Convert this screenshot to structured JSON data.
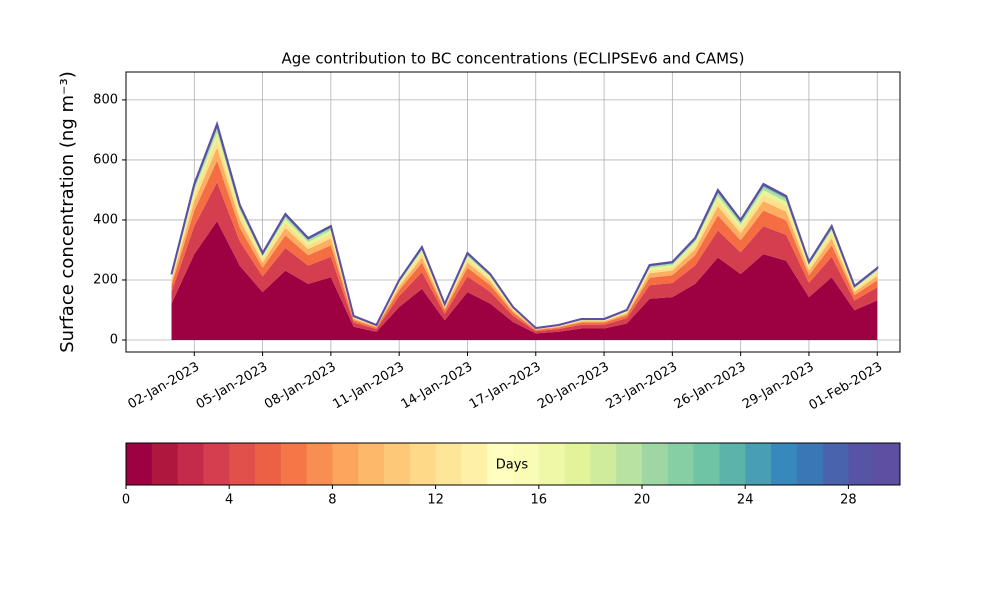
{
  "chart_data": {
    "type": "stacked-area",
    "title": "Age contribution to BC concentrations (ECLIPSEv6 and CAMS)",
    "y_label": "Surface concentration (ng m⁻³)",
    "x": [
      "01-Jan-2023",
      "02-Jan-2023",
      "03-Jan-2023",
      "04-Jan-2023",
      "05-Jan-2023",
      "06-Jan-2023",
      "07-Jan-2023",
      "08-Jan-2023",
      "09-Jan-2023",
      "10-Jan-2023",
      "11-Jan-2023",
      "12-Jan-2023",
      "13-Jan-2023",
      "14-Jan-2023",
      "15-Jan-2023",
      "16-Jan-2023",
      "17-Jan-2023",
      "18-Jan-2023",
      "19-Jan-2023",
      "20-Jan-2023",
      "21-Jan-2023",
      "22-Jan-2023",
      "23-Jan-2023",
      "24-Jan-2023",
      "25-Jan-2023",
      "26-Jan-2023",
      "27-Jan-2023",
      "28-Jan-2023",
      "29-Jan-2023",
      "30-Jan-2023",
      "31-Jan-2023",
      "01-Feb-2023"
    ],
    "series": [
      {
        "color": "#9e0142",
        "values": [
          121,
          286,
          396,
          247.5,
          159.5,
          231,
          187,
          209,
          44,
          27.5,
          110,
          170.5,
          66,
          159.5,
          121,
          60.5,
          22,
          27.5,
          38.5,
          38.5,
          55,
          137.5,
          143,
          187,
          275,
          220,
          286,
          264,
          143,
          209,
          99,
          132
        ]
      },
      {
        "color": "#d53e4f",
        "values": [
          39.6,
          93.6,
          129.6,
          81,
          52.2,
          75.6,
          61.2,
          68.4,
          14.4,
          9,
          36,
          55.8,
          21.6,
          52.2,
          39.6,
          19.8,
          7.2,
          9,
          12.6,
          12.6,
          18,
          45,
          46.8,
          61.2,
          90,
          72,
          93.6,
          86.4,
          46.8,
          68.4,
          32.4,
          43.2
        ]
      },
      {
        "color": "#f46d43",
        "values": [
          22,
          52,
          72,
          45,
          29,
          42,
          34,
          38,
          8,
          5,
          20,
          31,
          12,
          29,
          22,
          11,
          4,
          5,
          7,
          7,
          10,
          25,
          26,
          34,
          50,
          40,
          52,
          48,
          26,
          38,
          18,
          24
        ]
      },
      {
        "color": "#fdae61",
        "values": [
          13.2,
          31.2,
          43.2,
          27,
          17.4,
          25.2,
          20.4,
          22.8,
          4.8,
          3,
          12,
          18.6,
          7.2,
          17.4,
          13.2,
          6.6,
          2.4,
          3,
          4.2,
          4.2,
          6,
          15,
          15.6,
          20.4,
          30,
          24,
          31.2,
          28.8,
          15.6,
          22.8,
          10.8,
          14.4
        ]
      },
      {
        "color": "#fee08b",
        "values": [
          8.8,
          20.8,
          28.8,
          18,
          11.6,
          16.8,
          13.6,
          15.2,
          3.2,
          2,
          8,
          12.4,
          4.8,
          11.6,
          8.8,
          4.4,
          1.6,
          2,
          2.8,
          2.8,
          4,
          10,
          10.4,
          13.6,
          20,
          16,
          20.8,
          19.2,
          10.4,
          15.2,
          7.2,
          9.6
        ]
      },
      {
        "color": "#e6f598",
        "values": [
          6.6,
          15.6,
          21.6,
          13.5,
          8.7,
          12.6,
          10.2,
          11.4,
          2.4,
          1.5,
          6,
          9.3,
          3.6,
          8.7,
          6.6,
          3.3,
          1.2,
          1.5,
          2.1,
          2.1,
          3,
          7.5,
          7.8,
          10.2,
          15,
          12,
          15.6,
          14.4,
          7.8,
          11.4,
          5.4,
          7.2
        ]
      },
      {
        "color": "#abdda4",
        "values": [
          4.4,
          10.4,
          14.4,
          9,
          5.8,
          8.4,
          6.8,
          7.6,
          1.6,
          1,
          4,
          6.2,
          2.4,
          5.8,
          4.4,
          2.2,
          0.8,
          1,
          1.4,
          1.4,
          2,
          5,
          5.2,
          6.8,
          10,
          8,
          10.4,
          9.6,
          5.2,
          7.6,
          3.6,
          4.8
        ]
      },
      {
        "color": "#66c2a5",
        "values": [
          2.2,
          5.2,
          7.2,
          4.5,
          2.9,
          4.2,
          3.4,
          3.8,
          0.8,
          0.5,
          2,
          3.1,
          1.2,
          2.9,
          2.2,
          1.1,
          0.4,
          0.5,
          0.7,
          0.7,
          1,
          2.5,
          2.6,
          3.4,
          5,
          4,
          5.2,
          4.8,
          2.6,
          3.8,
          1.8,
          2.4
        ]
      },
      {
        "color": "#3288bd",
        "values": [
          1.3,
          3.1,
          4.3,
          2.7,
          1.7,
          2.5,
          2,
          2.3,
          0.5,
          0.3,
          1.2,
          1.9,
          0.7,
          1.7,
          1.3,
          0.7,
          0.2,
          0.3,
          0.4,
          0.4,
          0.6,
          1.5,
          1.6,
          2,
          3,
          2.4,
          3.1,
          2.9,
          1.6,
          2.3,
          1.1,
          1.4
        ]
      },
      {
        "color": "#5e4fa2",
        "values": [
          0.9,
          2.1,
          2.9,
          1.8,
          1.2,
          1.7,
          1.4,
          1.5,
          0.3,
          0.2,
          0.8,
          1.2,
          0.5,
          1.2,
          0.9,
          0.4,
          0.2,
          0.2,
          0.3,
          0.3,
          0.4,
          1,
          1,
          1.4,
          2,
          1.6,
          2.1,
          1.9,
          1,
          1.5,
          0.7,
          1
        ]
      }
    ],
    "xlim": [
      "30-Dec-2022",
      "02-Feb-2023"
    ],
    "xticks": [
      "02-Jan-2023",
      "05-Jan-2023",
      "08-Jan-2023",
      "11-Jan-2023",
      "14-Jan-2023",
      "17-Jan-2023",
      "20-Jan-2023",
      "23-Jan-2023",
      "26-Jan-2023",
      "29-Jan-2023",
      "01-Feb-2023"
    ],
    "ylim": [
      -40,
      893
    ],
    "yticks": [
      0,
      200,
      400,
      600,
      800
    ],
    "grid": true,
    "colorbar": {
      "label": "Days",
      "lim": [
        0,
        30
      ],
      "ticks": [
        0,
        4,
        8,
        12,
        16,
        20,
        24,
        28
      ],
      "colors": [
        "#9e0142",
        "#b0173f",
        "#c52a4b",
        "#d53e4f",
        "#e1504a",
        "#ec6145",
        "#f57748",
        "#f98e52",
        "#fca55d",
        "#fdb869",
        "#fdc978",
        "#fed987",
        "#fee698",
        "#fff1a8",
        "#fffebe",
        "#f8fcb4",
        "#eff8a6",
        "#e2f399",
        "#cfec9d",
        "#b8e2a1",
        "#9fd7a4",
        "#86cea4",
        "#6fc4a5",
        "#5bb3aa",
        "#489fb3",
        "#3789bc",
        "#3a77b6",
        "#4964ad",
        "#5854a5",
        "#5e4fa2"
      ]
    }
  }
}
